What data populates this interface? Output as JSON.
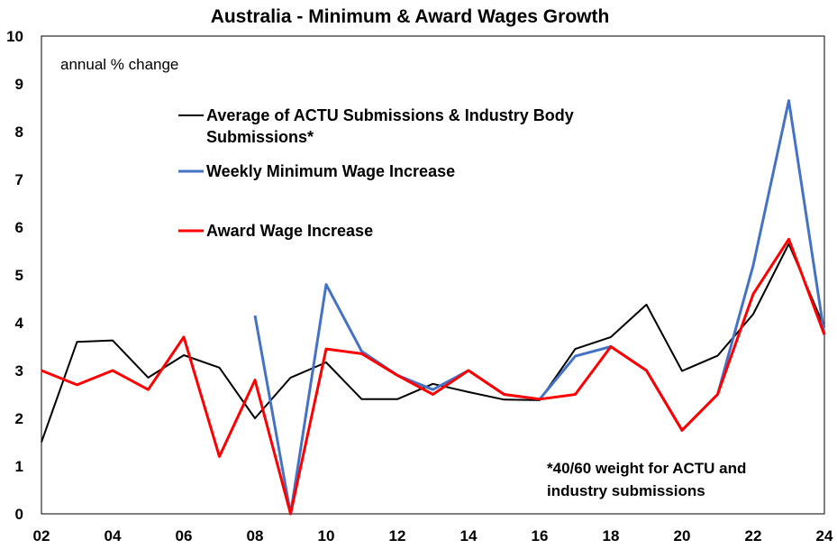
{
  "chart_data": {
    "type": "line",
    "title": "Australia - Minimum & Award Wages Growth",
    "ylabel": "annual % change",
    "xlabel": "",
    "x": [
      2002,
      2003,
      2004,
      2005,
      2006,
      2007,
      2008,
      2009,
      2010,
      2011,
      2012,
      2013,
      2014,
      2015,
      2016,
      2017,
      2018,
      2019,
      2020,
      2021,
      2022,
      2023,
      2024
    ],
    "xlim": [
      2002,
      2024
    ],
    "ylim": [
      0,
      10
    ],
    "y_ticks": [
      "0",
      "1",
      "2",
      "3",
      "4",
      "5",
      "6",
      "7",
      "8",
      "9",
      "10"
    ],
    "x_ticks": [
      {
        "x": 2002,
        "label": "02"
      },
      {
        "x": 2004,
        "label": "04"
      },
      {
        "x": 2006,
        "label": "06"
      },
      {
        "x": 2008,
        "label": "08"
      },
      {
        "x": 2010,
        "label": "10"
      },
      {
        "x": 2012,
        "label": "12"
      },
      {
        "x": 2014,
        "label": "14"
      },
      {
        "x": 2016,
        "label": "16"
      },
      {
        "x": 2018,
        "label": "18"
      },
      {
        "x": 2020,
        "label": "20"
      },
      {
        "x": 2022,
        "label": "22"
      },
      {
        "x": 2024,
        "label": "24"
      }
    ],
    "grid": false,
    "legend_position": "top-left, inside plot",
    "series": [
      {
        "name": "Average of ACTU Submissions & Industry Body Submissions*",
        "legend_lines": [
          "Average of ACTU Submissions & Industry Body",
          "Submissions*"
        ],
        "color": "#000000",
        "values": [
          1.5,
          3.6,
          3.63,
          2.85,
          3.32,
          3.06,
          2.0,
          2.85,
          3.17,
          2.4,
          2.4,
          2.72,
          2.55,
          2.39,
          2.38,
          3.45,
          3.7,
          4.38,
          2.99,
          3.31,
          4.18,
          5.65,
          3.9
        ]
      },
      {
        "name": "Weekly Minimum Wage Increase",
        "legend_lines": [
          "Weekly Minimum Wage Increase"
        ],
        "color": "#4472C4",
        "values": [
          null,
          null,
          null,
          null,
          null,
          null,
          4.15,
          0.0,
          4.8,
          3.4,
          2.9,
          2.6,
          3.0,
          2.5,
          2.4,
          3.3,
          3.5,
          3.0,
          1.75,
          2.5,
          5.2,
          8.65,
          3.75
        ]
      },
      {
        "name": "Award Wage Increase",
        "legend_lines": [
          "Award Wage Increase"
        ],
        "color": "#FF0000",
        "values": [
          3.0,
          2.7,
          3.0,
          2.6,
          3.7,
          1.2,
          2.8,
          0.0,
          3.45,
          3.35,
          2.9,
          2.5,
          3.0,
          2.5,
          2.4,
          2.5,
          3.5,
          3.0,
          1.75,
          2.5,
          4.6,
          5.75,
          3.75
        ]
      }
    ],
    "annotations": [
      "*40/60 weight for ACTU and",
      "industry submissions"
    ]
  }
}
